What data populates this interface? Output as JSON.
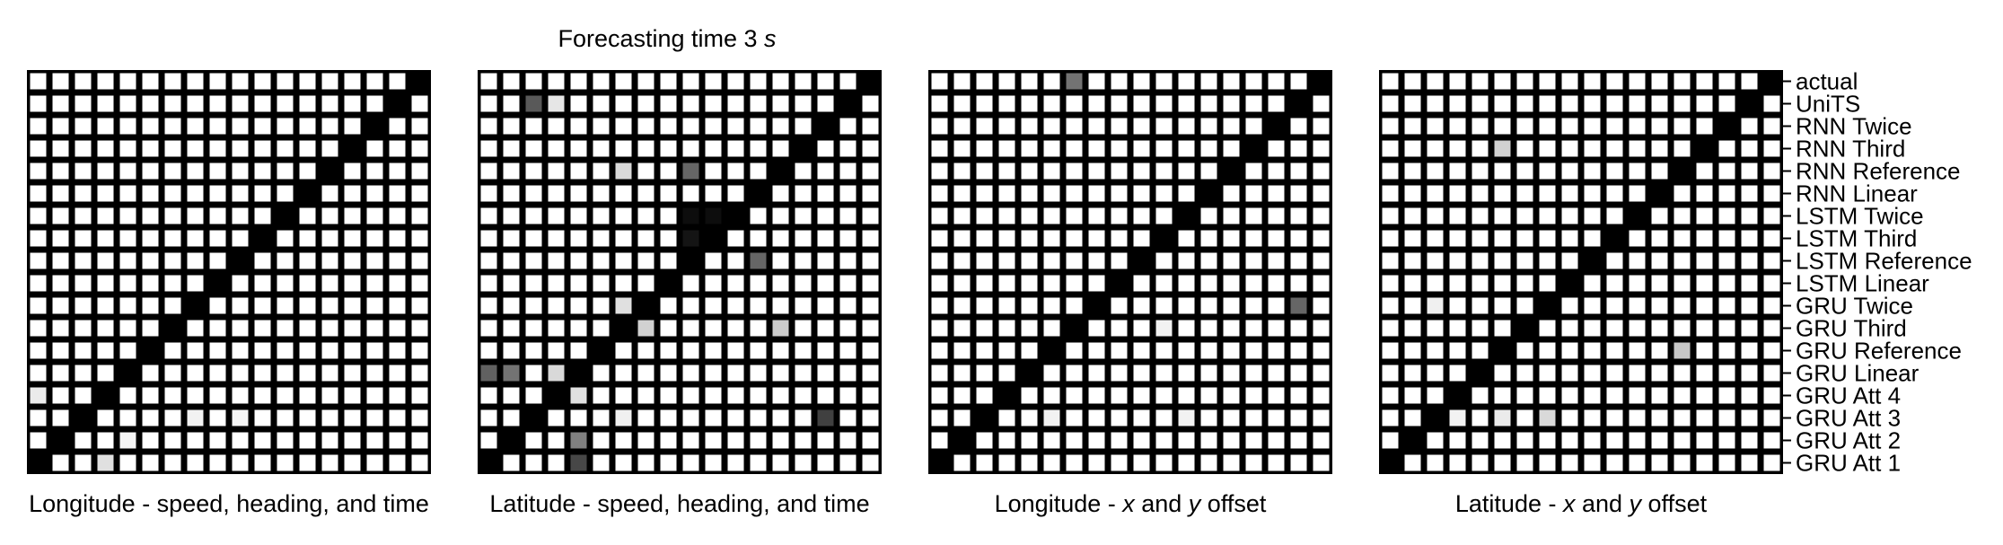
{
  "chart_data": {
    "type": "heatmap",
    "title": "Forecasting time 3 s",
    "title_text": "Forecasting time 3 ",
    "title_unit": "s",
    "colormap": "gray_r",
    "grid": true,
    "row_labels": [
      "actual",
      "UniTS",
      "RNN Twice",
      "RNN Third",
      "RNN Reference",
      "RNN Linear",
      "LSTM Twice",
      "LSTM Third",
      "LSTM Reference",
      "LSTM Linear",
      "GRU Twice",
      "GRU Third",
      "GRU Reference",
      "GRU Linear",
      "GRU Att 4",
      "GRU Att 3",
      "GRU Att 2",
      "GRU Att 1"
    ],
    "column_order_note": "",
    "panels": [
      {
        "xlabel": "Longitude - speed, heading, and time",
        "xlabel_parts": [
          [
            "Longitude - speed, heading, and time",
            false
          ]
        ],
        "cells": [
          {
            "r": 14,
            "c": 0,
            "v": 0.08
          },
          {
            "r": 17,
            "c": 3,
            "v": 0.12
          },
          {
            "r": 15,
            "c": 7,
            "v": 0.05
          },
          {
            "r": 15,
            "c": 9,
            "v": 0.04
          },
          {
            "r": 16,
            "c": 4,
            "v": 0.04
          }
        ]
      },
      {
        "xlabel": "Latitude - speed, heading, and time",
        "xlabel_parts": [
          [
            "Latitude - speed, heading, and time",
            false
          ]
        ],
        "cells": [
          {
            "r": 1,
            "c": 2,
            "v": 0.65
          },
          {
            "r": 1,
            "c": 3,
            "v": 0.1
          },
          {
            "r": 4,
            "c": 6,
            "v": 0.15
          },
          {
            "r": 4,
            "c": 9,
            "v": 0.6
          },
          {
            "r": 6,
            "c": 9,
            "v": 0.95
          },
          {
            "r": 6,
            "c": 10,
            "v": 0.95
          },
          {
            "r": 7,
            "c": 9,
            "v": 0.92
          },
          {
            "r": 7,
            "c": 10,
            "v": 0.98
          },
          {
            "r": 8,
            "c": 12,
            "v": 0.6
          },
          {
            "r": 10,
            "c": 6,
            "v": 0.12
          },
          {
            "r": 11,
            "c": 7,
            "v": 0.18
          },
          {
            "r": 11,
            "c": 13,
            "v": 0.2
          },
          {
            "r": 13,
            "c": 0,
            "v": 0.62
          },
          {
            "r": 13,
            "c": 1,
            "v": 0.55
          },
          {
            "r": 13,
            "c": 3,
            "v": 0.15
          },
          {
            "r": 14,
            "c": 4,
            "v": 0.12
          },
          {
            "r": 15,
            "c": 15,
            "v": 0.75
          },
          {
            "r": 15,
            "c": 6,
            "v": 0.06
          },
          {
            "r": 16,
            "c": 4,
            "v": 0.5
          },
          {
            "r": 17,
            "c": 4,
            "v": 0.72
          }
        ]
      },
      {
        "xlabel": "Longitude - x and y offset",
        "xlabel_parts": [
          [
            "Longitude - ",
            false
          ],
          [
            "x",
            true
          ],
          [
            " and ",
            false
          ],
          [
            "y",
            true
          ],
          [
            " offset",
            false
          ]
        ],
        "cells": [
          {
            "r": 0,
            "c": 6,
            "v": 0.55
          },
          {
            "r": 10,
            "c": 16,
            "v": 0.6
          },
          {
            "r": 11,
            "c": 10,
            "v": 0.05
          },
          {
            "r": 15,
            "c": 5,
            "v": 0.05
          },
          {
            "r": 15,
            "c": 11,
            "v": 0.05
          }
        ]
      },
      {
        "xlabel": "Latitude - x and y offset",
        "xlabel_parts": [
          [
            "Latitude - ",
            false
          ],
          [
            "x",
            true
          ],
          [
            " and ",
            false
          ],
          [
            "y",
            true
          ],
          [
            " offset",
            false
          ]
        ],
        "cells": [
          {
            "r": 3,
            "c": 5,
            "v": 0.18
          },
          {
            "r": 10,
            "c": 2,
            "v": 0.06
          },
          {
            "r": 12,
            "c": 13,
            "v": 0.22
          },
          {
            "r": 15,
            "c": 5,
            "v": 0.08
          },
          {
            "r": 15,
            "c": 7,
            "v": 0.15
          },
          {
            "r": 15,
            "c": 3,
            "v": 0.05
          }
        ]
      }
    ]
  }
}
